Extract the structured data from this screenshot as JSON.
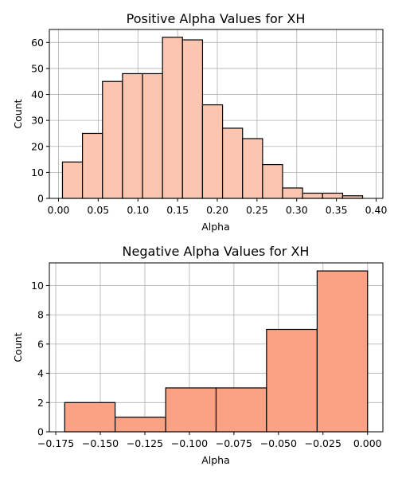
{
  "chart_data": [
    {
      "type": "bar",
      "title": "Positive Alpha Values for XH",
      "xlabel": "Alpha",
      "ylabel": "Count",
      "xlim": [
        -0.0115,
        0.4085
      ],
      "ylim": [
        0,
        65
      ],
      "bin_edges": [
        0.005,
        0.0302,
        0.0554,
        0.0806,
        0.1058,
        0.131,
        0.1562,
        0.1814,
        0.2066,
        0.2318,
        0.257,
        0.2822,
        0.3074,
        0.3326,
        0.3578,
        0.383
      ],
      "values": [
        14,
        25,
        45,
        48,
        48,
        62,
        61,
        36,
        27,
        23,
        13,
        4,
        2,
        2,
        1
      ],
      "x_ticks": [
        0.0,
        0.05,
        0.1,
        0.15,
        0.2,
        0.25,
        0.3,
        0.35,
        0.4
      ],
      "x_tick_labels": [
        "0.00",
        "0.05",
        "0.10",
        "0.15",
        "0.20",
        "0.25",
        "0.30",
        "0.35",
        "0.40"
      ],
      "y_ticks": [
        0,
        10,
        20,
        30,
        40,
        50,
        60
      ],
      "y_tick_labels": [
        "0",
        "10",
        "20",
        "30",
        "40",
        "50",
        "60"
      ],
      "grid": true,
      "colors": {
        "bar_fill": "#fcc5b0",
        "bar_edge": "#000000",
        "grid": "#b0b0b0"
      }
    },
    {
      "type": "bar",
      "title": "Negative Alpha Values for XH",
      "xlabel": "Alpha",
      "ylabel": "Count",
      "xlim": [
        -0.1786,
        0.0086
      ],
      "ylim": [
        0,
        11.55
      ],
      "bin_edges": [
        -0.17,
        -0.1417,
        -0.1133,
        -0.085,
        -0.0567,
        -0.0283,
        0.0
      ],
      "values": [
        2,
        1,
        3,
        3,
        7,
        11
      ],
      "x_ticks": [
        -0.175,
        -0.15,
        -0.125,
        -0.1,
        -0.075,
        -0.05,
        -0.025,
        0.0
      ],
      "x_tick_labels": [
        "−0.175",
        "−0.150",
        "−0.125",
        "−0.100",
        "−0.075",
        "−0.050",
        "−0.025",
        "0.000"
      ],
      "y_ticks": [
        0,
        2,
        4,
        6,
        8,
        10
      ],
      "y_tick_labels": [
        "0",
        "2",
        "4",
        "6",
        "8",
        "10"
      ],
      "grid": true,
      "colors": {
        "bar_fill": "#fca284",
        "bar_edge": "#000000",
        "grid": "#b0b0b0"
      }
    }
  ]
}
